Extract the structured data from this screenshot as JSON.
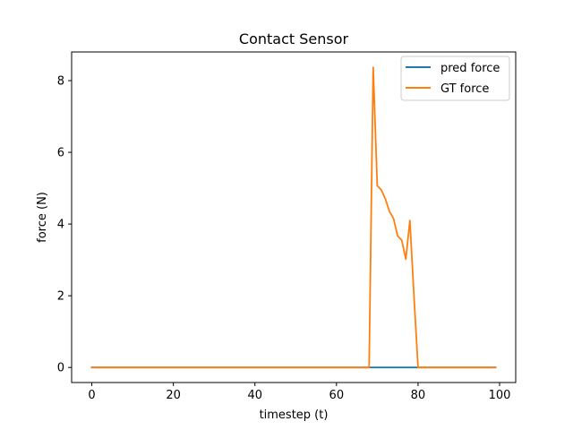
{
  "chart_data": {
    "type": "line",
    "title": "Contact Sensor",
    "xlabel": "timestep (t)",
    "ylabel": "force (N)",
    "xlim": [
      -4.95,
      103.95
    ],
    "ylim": [
      -0.42,
      8.8
    ],
    "xticks": [
      0,
      20,
      40,
      60,
      80,
      100
    ],
    "yticks": [
      0,
      2,
      4,
      6,
      8
    ],
    "grid": false,
    "legend_position": "top-right",
    "series": [
      {
        "name": "pred force",
        "color": "#1f77b4",
        "x": [
          0,
          99
        ],
        "y": [
          0,
          0
        ]
      },
      {
        "name": "GT force",
        "color": "#ff7f0e",
        "x": [
          0,
          68,
          69,
          70,
          71,
          72,
          73,
          74,
          75,
          76,
          77,
          78,
          79,
          80,
          99
        ],
        "y": [
          0,
          0,
          8.37,
          5.07,
          4.95,
          4.7,
          4.35,
          4.15,
          3.67,
          3.55,
          3.02,
          4.1,
          2.0,
          0,
          0
        ]
      }
    ]
  }
}
